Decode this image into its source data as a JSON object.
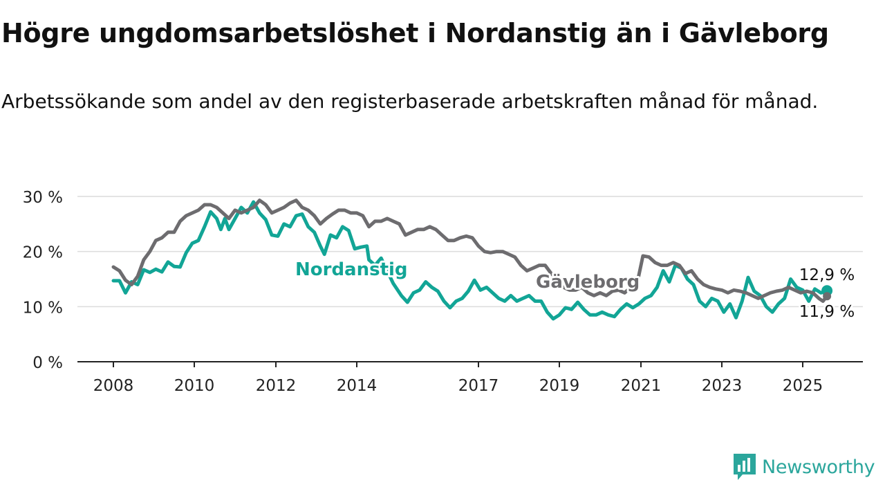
{
  "chart_data": {
    "type": "line",
    "title": "Högre ungdomsarbetslöshet i Nordanstig än i Gävleborg",
    "subtitle": "Arbetssökande som andel av den registerbaserade arbetskraften månad för månad.",
    "xlabel": "",
    "ylabel": "",
    "ylim": [
      0,
      30
    ],
    "y_ticks": [
      "0 %",
      "10 %",
      "20 %",
      "30 %"
    ],
    "y_tick_values": [
      0,
      10,
      20,
      30
    ],
    "x_ticks": [
      "2008",
      "2010",
      "2012",
      "2014",
      "2017",
      "2019",
      "2021",
      "2023",
      "2025"
    ],
    "x_tick_values": [
      2008,
      2010,
      2012,
      2014,
      2017,
      2019,
      2021,
      2023,
      2025
    ],
    "xlim": [
      2008,
      2025.75
    ],
    "grid": true,
    "legend": "inline labels",
    "series": [
      {
        "name": "Nordanstig",
        "color": "#12a596",
        "last_value_label": "12,9 %",
        "points": [
          [
            2008.0,
            14.7
          ],
          [
            2008.15,
            14.7
          ],
          [
            2008.3,
            12.5
          ],
          [
            2008.45,
            14.5
          ],
          [
            2008.6,
            14.0
          ],
          [
            2008.75,
            16.7
          ],
          [
            2008.9,
            16.2
          ],
          [
            2009.05,
            16.8
          ],
          [
            2009.2,
            16.3
          ],
          [
            2009.35,
            18.1
          ],
          [
            2009.5,
            17.3
          ],
          [
            2009.65,
            17.2
          ],
          [
            2009.8,
            19.8
          ],
          [
            2009.95,
            21.5
          ],
          [
            2010.1,
            22.0
          ],
          [
            2010.25,
            24.5
          ],
          [
            2010.4,
            27.2
          ],
          [
            2010.55,
            26.0
          ],
          [
            2010.65,
            24.0
          ],
          [
            2010.75,
            26.0
          ],
          [
            2010.85,
            24.0
          ],
          [
            2011.0,
            26.0
          ],
          [
            2011.15,
            28.0
          ],
          [
            2011.3,
            27.0
          ],
          [
            2011.45,
            29.0
          ],
          [
            2011.6,
            27.0
          ],
          [
            2011.75,
            25.8
          ],
          [
            2011.9,
            23.0
          ],
          [
            2012.05,
            22.8
          ],
          [
            2012.2,
            25.0
          ],
          [
            2012.35,
            24.5
          ],
          [
            2012.5,
            26.5
          ],
          [
            2012.65,
            26.8
          ],
          [
            2012.8,
            24.5
          ],
          [
            2012.95,
            23.5
          ],
          [
            2013.1,
            21.0
          ],
          [
            2013.2,
            19.5
          ],
          [
            2013.35,
            23.0
          ],
          [
            2013.5,
            22.5
          ],
          [
            2013.65,
            24.5
          ],
          [
            2013.8,
            23.8
          ],
          [
            2013.95,
            20.5
          ],
          [
            2014.1,
            20.8
          ],
          [
            2014.25,
            21.0
          ],
          [
            2014.3,
            18.5
          ],
          [
            2014.45,
            17.5
          ],
          [
            2014.6,
            18.8
          ],
          [
            2014.75,
            16.5
          ],
          [
            2014.9,
            14.2
          ],
          [
            2015.1,
            12.0
          ],
          [
            2015.25,
            10.8
          ],
          [
            2015.4,
            12.5
          ],
          [
            2015.55,
            13.0
          ],
          [
            2015.7,
            14.5
          ],
          [
            2015.85,
            13.5
          ],
          [
            2016.0,
            12.8
          ],
          [
            2016.15,
            11.0
          ],
          [
            2016.3,
            9.8
          ],
          [
            2016.45,
            11.0
          ],
          [
            2016.6,
            11.5
          ],
          [
            2016.75,
            12.8
          ],
          [
            2016.9,
            14.8
          ],
          [
            2017.05,
            13.0
          ],
          [
            2017.2,
            13.5
          ],
          [
            2017.35,
            12.5
          ],
          [
            2017.5,
            11.5
          ],
          [
            2017.65,
            11.0
          ],
          [
            2017.8,
            12.0
          ],
          [
            2017.95,
            11.0
          ],
          [
            2018.1,
            11.5
          ],
          [
            2018.25,
            12.0
          ],
          [
            2018.4,
            11.0
          ],
          [
            2018.55,
            11.0
          ],
          [
            2018.7,
            9.0
          ],
          [
            2018.85,
            7.8
          ],
          [
            2019.0,
            8.5
          ],
          [
            2019.15,
            9.8
          ],
          [
            2019.3,
            9.5
          ],
          [
            2019.45,
            10.8
          ],
          [
            2019.6,
            9.5
          ],
          [
            2019.75,
            8.5
          ],
          [
            2019.9,
            8.5
          ],
          [
            2020.05,
            9.0
          ],
          [
            2020.2,
            8.5
          ],
          [
            2020.35,
            8.2
          ],
          [
            2020.5,
            9.5
          ],
          [
            2020.65,
            10.5
          ],
          [
            2020.8,
            9.8
          ],
          [
            2020.95,
            10.5
          ],
          [
            2021.1,
            11.5
          ],
          [
            2021.25,
            12.0
          ],
          [
            2021.4,
            13.5
          ],
          [
            2021.55,
            16.5
          ],
          [
            2021.7,
            14.5
          ],
          [
            2021.85,
            17.5
          ],
          [
            2022.0,
            17.0
          ],
          [
            2022.15,
            15.0
          ],
          [
            2022.3,
            14.0
          ],
          [
            2022.45,
            11.0
          ],
          [
            2022.6,
            10.0
          ],
          [
            2022.75,
            11.5
          ],
          [
            2022.9,
            11.0
          ],
          [
            2023.05,
            9.0
          ],
          [
            2023.2,
            10.5
          ],
          [
            2023.35,
            8.0
          ],
          [
            2023.5,
            11.0
          ],
          [
            2023.65,
            15.3
          ],
          [
            2023.8,
            12.8
          ],
          [
            2023.95,
            12.0
          ],
          [
            2024.1,
            10.0
          ],
          [
            2024.25,
            9.0
          ],
          [
            2024.4,
            10.5
          ],
          [
            2024.55,
            11.5
          ],
          [
            2024.7,
            15.0
          ],
          [
            2024.85,
            13.5
          ],
          [
            2025.0,
            13.0
          ],
          [
            2025.15,
            11.0
          ],
          [
            2025.3,
            13.2
          ],
          [
            2025.45,
            12.5
          ],
          [
            2025.6,
            12.9
          ]
        ]
      },
      {
        "name": "Gävleborg",
        "color": "#6d6c6f",
        "last_value_label": "11,9 %",
        "points": [
          [
            2008.0,
            17.2
          ],
          [
            2008.15,
            16.5
          ],
          [
            2008.3,
            14.8
          ],
          [
            2008.45,
            14.0
          ],
          [
            2008.6,
            15.5
          ],
          [
            2008.75,
            18.5
          ],
          [
            2008.9,
            20.0
          ],
          [
            2009.05,
            22.0
          ],
          [
            2009.2,
            22.5
          ],
          [
            2009.35,
            23.5
          ],
          [
            2009.5,
            23.5
          ],
          [
            2009.65,
            25.5
          ],
          [
            2009.8,
            26.5
          ],
          [
            2009.95,
            27.0
          ],
          [
            2010.1,
            27.5
          ],
          [
            2010.25,
            28.5
          ],
          [
            2010.4,
            28.5
          ],
          [
            2010.55,
            28.0
          ],
          [
            2010.7,
            27.0
          ],
          [
            2010.85,
            26.0
          ],
          [
            2011.0,
            27.5
          ],
          [
            2011.15,
            27.0
          ],
          [
            2011.3,
            27.5
          ],
          [
            2011.45,
            28.0
          ],
          [
            2011.6,
            29.3
          ],
          [
            2011.75,
            28.5
          ],
          [
            2011.9,
            27.0
          ],
          [
            2012.05,
            27.5
          ],
          [
            2012.2,
            28.0
          ],
          [
            2012.35,
            28.8
          ],
          [
            2012.5,
            29.3
          ],
          [
            2012.65,
            28.0
          ],
          [
            2012.8,
            27.5
          ],
          [
            2012.95,
            26.5
          ],
          [
            2013.1,
            25.0
          ],
          [
            2013.25,
            26.0
          ],
          [
            2013.4,
            26.8
          ],
          [
            2013.55,
            27.5
          ],
          [
            2013.7,
            27.5
          ],
          [
            2013.85,
            27.0
          ],
          [
            2014.0,
            27.0
          ],
          [
            2014.15,
            26.5
          ],
          [
            2014.3,
            24.5
          ],
          [
            2014.45,
            25.5
          ],
          [
            2014.6,
            25.5
          ],
          [
            2014.75,
            26.0
          ],
          [
            2014.9,
            25.5
          ],
          [
            2015.05,
            25.0
          ],
          [
            2015.2,
            23.0
          ],
          [
            2015.35,
            23.5
          ],
          [
            2015.5,
            24.0
          ],
          [
            2015.65,
            24.0
          ],
          [
            2015.8,
            24.5
          ],
          [
            2015.95,
            24.0
          ],
          [
            2016.1,
            23.0
          ],
          [
            2016.25,
            22.0
          ],
          [
            2016.4,
            22.0
          ],
          [
            2016.55,
            22.5
          ],
          [
            2016.7,
            22.8
          ],
          [
            2016.85,
            22.5
          ],
          [
            2017.0,
            21.0
          ],
          [
            2017.15,
            20.0
          ],
          [
            2017.3,
            19.8
          ],
          [
            2017.45,
            20.0
          ],
          [
            2017.6,
            20.0
          ],
          [
            2017.75,
            19.5
          ],
          [
            2017.9,
            19.0
          ],
          [
            2018.05,
            17.5
          ],
          [
            2018.2,
            16.5
          ],
          [
            2018.35,
            17.0
          ],
          [
            2018.5,
            17.5
          ],
          [
            2018.65,
            17.5
          ],
          [
            2018.8,
            16.0
          ],
          [
            2018.95,
            15.0
          ],
          [
            2019.1,
            13.5
          ],
          [
            2019.25,
            13.0
          ],
          [
            2019.4,
            13.0
          ],
          [
            2019.55,
            13.5
          ],
          [
            2019.7,
            12.5
          ],
          [
            2019.85,
            12.0
          ],
          [
            2020.0,
            12.5
          ],
          [
            2020.15,
            12.0
          ],
          [
            2020.3,
            12.8
          ],
          [
            2020.45,
            13.0
          ],
          [
            2020.6,
            12.5
          ],
          [
            2020.75,
            13.5
          ],
          [
            2020.9,
            14.0
          ],
          [
            2021.05,
            19.2
          ],
          [
            2021.2,
            19.0
          ],
          [
            2021.35,
            18.0
          ],
          [
            2021.5,
            17.5
          ],
          [
            2021.65,
            17.5
          ],
          [
            2021.8,
            18.0
          ],
          [
            2021.95,
            17.5
          ],
          [
            2022.1,
            16.0
          ],
          [
            2022.25,
            16.5
          ],
          [
            2022.4,
            15.0
          ],
          [
            2022.55,
            14.0
          ],
          [
            2022.7,
            13.5
          ],
          [
            2022.85,
            13.2
          ],
          [
            2023.0,
            13.0
          ],
          [
            2023.15,
            12.5
          ],
          [
            2023.3,
            13.0
          ],
          [
            2023.45,
            12.8
          ],
          [
            2023.6,
            12.5
          ],
          [
            2023.75,
            12.0
          ],
          [
            2023.9,
            11.5
          ],
          [
            2024.05,
            12.0
          ],
          [
            2024.2,
            12.5
          ],
          [
            2024.35,
            12.8
          ],
          [
            2024.5,
            13.0
          ],
          [
            2024.65,
            13.5
          ],
          [
            2024.8,
            13.0
          ],
          [
            2024.95,
            12.5
          ],
          [
            2025.1,
            12.8
          ],
          [
            2025.25,
            12.5
          ],
          [
            2025.4,
            11.5
          ],
          [
            2025.5,
            11.0
          ],
          [
            2025.6,
            11.9
          ]
        ]
      }
    ]
  },
  "brand": {
    "name": "Newsworthy",
    "logo_icon": "newsworthy-logo-icon"
  }
}
